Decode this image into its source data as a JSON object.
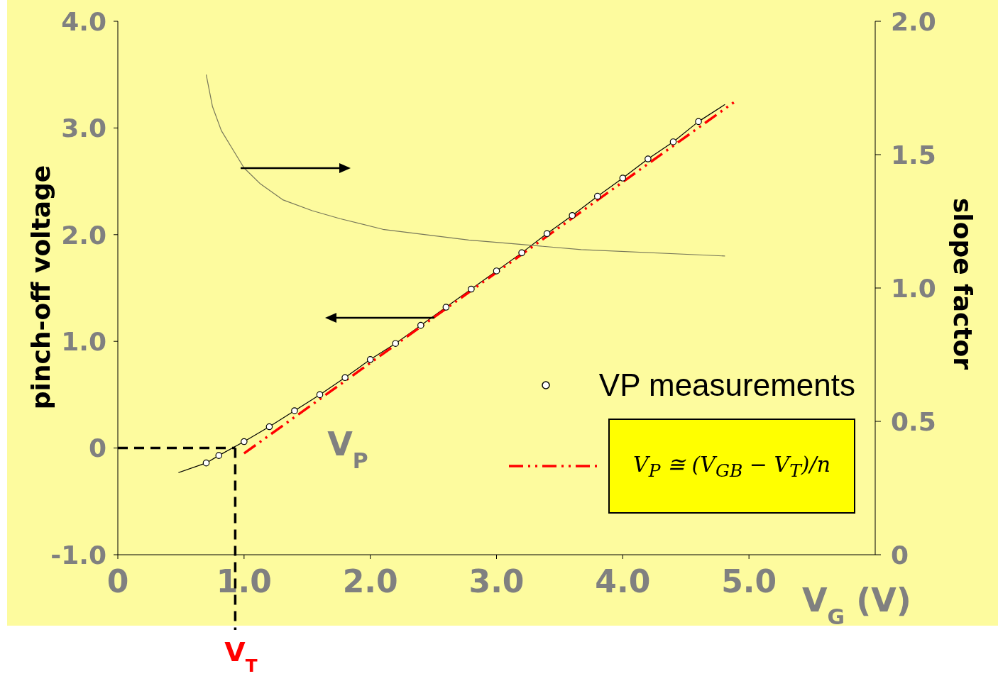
{
  "chart_data": {
    "type": "line",
    "xlabel": "V$_{G}$ (V)",
    "ylabel": "pinch-off voltage",
    "y2label": "slope factor",
    "xlim": [
      0,
      6
    ],
    "xticks": [
      0,
      {
        "value": 1,
        "label": "1.0"
      },
      {
        "value": 2,
        "label": "2.0"
      },
      {
        "value": 3,
        "label": "3.0"
      },
      {
        "value": 4,
        "label": "4.0"
      },
      {
        "value": 5,
        "label": "5.0"
      }
    ],
    "ylim": [
      -1.0,
      4.0
    ],
    "yticks": [
      {
        "value": -1,
        "label": "-1.0"
      },
      0,
      {
        "value": 1,
        "label": "1.0"
      },
      {
        "value": 2,
        "label": "2.0"
      },
      {
        "value": 3,
        "label": "3.0"
      },
      {
        "value": 4,
        "label": "4.0"
      }
    ],
    "y2lim": [
      0,
      2.0
    ],
    "y2ticks": [
      0,
      0.5,
      {
        "value": 1,
        "label": "1.0"
      },
      1.5,
      {
        "value": 2,
        "label": "2.0"
      }
    ],
    "legend": "bottom right",
    "series": [
      {
        "type": "scatter",
        "name": "VP measurements",
        "color": "#000000",
        "marker": "circle",
        "x": [
          0.7,
          0.8,
          1.0,
          1.2,
          1.4,
          1.6,
          1.8,
          2.0,
          2.2,
          2.4,
          2.6,
          2.8,
          3.0,
          3.2,
          3.4,
          3.6,
          3.8,
          4.0,
          4.2,
          4.4,
          4.6
        ],
        "values": [
          -0.14,
          -0.07,
          0.06,
          0.2,
          0.35,
          0.5,
          0.66,
          0.83,
          0.98,
          1.15,
          1.32,
          1.49,
          1.66,
          1.83,
          2.01,
          2.18,
          2.36,
          2.53,
          2.71,
          2.87,
          3.06
        ]
      },
      {
        "color": "#000000",
        "line_style": "solid",
        "x": [
          0.48,
          0.7,
          0.8,
          1.0,
          1.2,
          1.4,
          1.6,
          1.8,
          2.0,
          2.2,
          2.4,
          2.6,
          2.8,
          3.0,
          3.2,
          3.4,
          3.6,
          3.8,
          4.0,
          4.2,
          4.4,
          4.6,
          4.81
        ],
        "values": [
          -0.23,
          -0.14,
          -0.07,
          0.06,
          0.2,
          0.35,
          0.5,
          0.66,
          0.83,
          0.98,
          1.15,
          1.32,
          1.49,
          1.66,
          1.83,
          2.01,
          2.18,
          2.36,
          2.53,
          2.71,
          2.87,
          3.06,
          3.22
        ]
      },
      {
        "name": "V$_{P}$ ≅ (V$_{GB}$ − V$_{T}$)/n",
        "color": "#ff0000",
        "line_style": "dashdot",
        "x": [
          1.0,
          4.88
        ],
        "values": [
          -0.05,
          3.24
        ]
      },
      {
        "color": "#77775a",
        "axis": "y2",
        "line_style": "solid",
        "x": [
          0.7,
          0.75,
          0.82,
          0.91,
          1.0,
          1.13,
          1.31,
          1.54,
          1.76,
          2.1,
          2.44,
          2.78,
          3.15,
          3.67,
          4.81
        ],
        "values": [
          1.8,
          1.68,
          1.59,
          1.52,
          1.45,
          1.39,
          1.33,
          1.29,
          1.26,
          1.22,
          1.2,
          1.18,
          1.165,
          1.144,
          1.12
        ]
      },
      {
        "color": "#000000",
        "line_style": "dashed",
        "x": [
          0,
          0.93
        ],
        "values": [
          0,
          0
        ]
      }
    ],
    "annotations": [
      "V$_{P}$",
      {
        "text": "V$_{T}$",
        "x": 0.93,
        "y": 0
      }
    ]
  }
}
